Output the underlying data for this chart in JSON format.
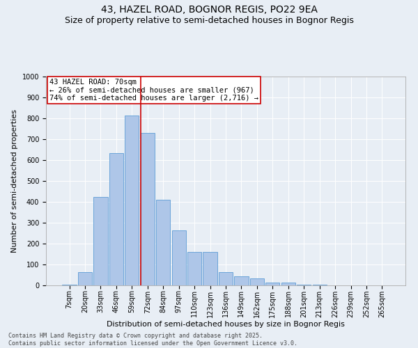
{
  "title1": "43, HAZEL ROAD, BOGNOR REGIS, PO22 9EA",
  "title2": "Size of property relative to semi-detached houses in Bognor Regis",
  "xlabel": "Distribution of semi-detached houses by size in Bognor Regis",
  "ylabel": "Number of semi-detached properties",
  "categories": [
    "7sqm",
    "20sqm",
    "33sqm",
    "46sqm",
    "59sqm",
    "72sqm",
    "84sqm",
    "97sqm",
    "110sqm",
    "123sqm",
    "136sqm",
    "149sqm",
    "162sqm",
    "175sqm",
    "188sqm",
    "201sqm",
    "213sqm",
    "226sqm",
    "239sqm",
    "252sqm",
    "265sqm"
  ],
  "values": [
    5,
    65,
    425,
    635,
    815,
    730,
    410,
    265,
    160,
    160,
    65,
    45,
    35,
    15,
    13,
    2,
    2,
    0,
    0,
    0,
    0
  ],
  "bar_color": "#aec6e8",
  "bar_edge_color": "#5b9bd5",
  "vline_color": "#cc0000",
  "vline_x": 4.575,
  "annotation_title": "43 HAZEL ROAD: 70sqm",
  "annotation_line1": "← 26% of semi-detached houses are smaller (967)",
  "annotation_line2": "74% of semi-detached houses are larger (2,716) →",
  "annotation_box_color": "#cc0000",
  "ylim": [
    0,
    1000
  ],
  "yticks": [
    0,
    100,
    200,
    300,
    400,
    500,
    600,
    700,
    800,
    900,
    1000
  ],
  "background_color": "#e8eef5",
  "footer": "Contains HM Land Registry data © Crown copyright and database right 2025.\nContains public sector information licensed under the Open Government Licence v3.0.",
  "title_fontsize": 10,
  "subtitle_fontsize": 9,
  "axis_label_fontsize": 8,
  "tick_fontsize": 7,
  "annotation_fontsize": 7.5
}
